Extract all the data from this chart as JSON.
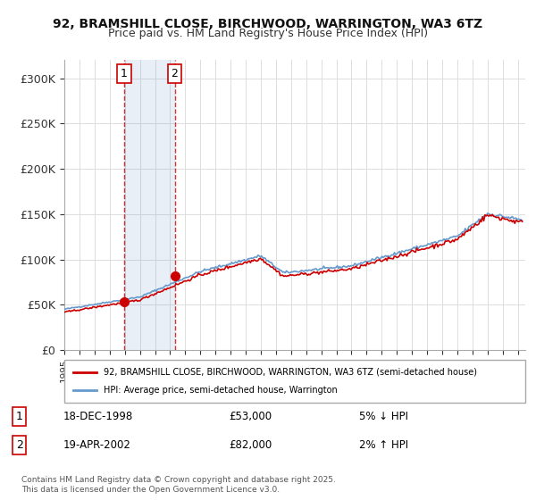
{
  "title": "92, BRAMSHILL CLOSE, BIRCHWOOD, WARRINGTON, WA3 6TZ",
  "subtitle": "Price paid vs. HM Land Registry's House Price Index (HPI)",
  "ylabel_ticks": [
    "£0",
    "£50K",
    "£100K",
    "£150K",
    "£200K",
    "£250K",
    "£300K"
  ],
  "ytick_values": [
    0,
    50000,
    100000,
    150000,
    200000,
    250000,
    300000
  ],
  "ylim": [
    0,
    320000
  ],
  "xlim_start": 1995.0,
  "xlim_end": 2025.5,
  "property_color": "#cc0000",
  "hpi_color": "#6699cc",
  "purchase_marker_color": "#cc0000",
  "purchase1_x": 1998.96,
  "purchase1_y": 53000,
  "purchase2_x": 2002.3,
  "purchase2_y": 82000,
  "shade_x1": 1998.96,
  "shade_x2": 2002.3,
  "legend_property": "92, BRAMSHILL CLOSE, BIRCHWOOD, WARRINGTON, WA3 6TZ (semi-detached house)",
  "legend_hpi": "HPI: Average price, semi-detached house, Warrington",
  "annotation1_label": "1",
  "annotation1_date": "18-DEC-1998",
  "annotation1_price": "£53,000",
  "annotation1_hpi": "5% ↓ HPI",
  "annotation2_label": "2",
  "annotation2_date": "19-APR-2002",
  "annotation2_price": "£82,000",
  "annotation2_hpi": "2% ↑ HPI",
  "footnote": "Contains HM Land Registry data © Crown copyright and database right 2025.\nThis data is licensed under the Open Government Licence v3.0.",
  "background_color": "#ffffff",
  "grid_color": "#dddddd"
}
